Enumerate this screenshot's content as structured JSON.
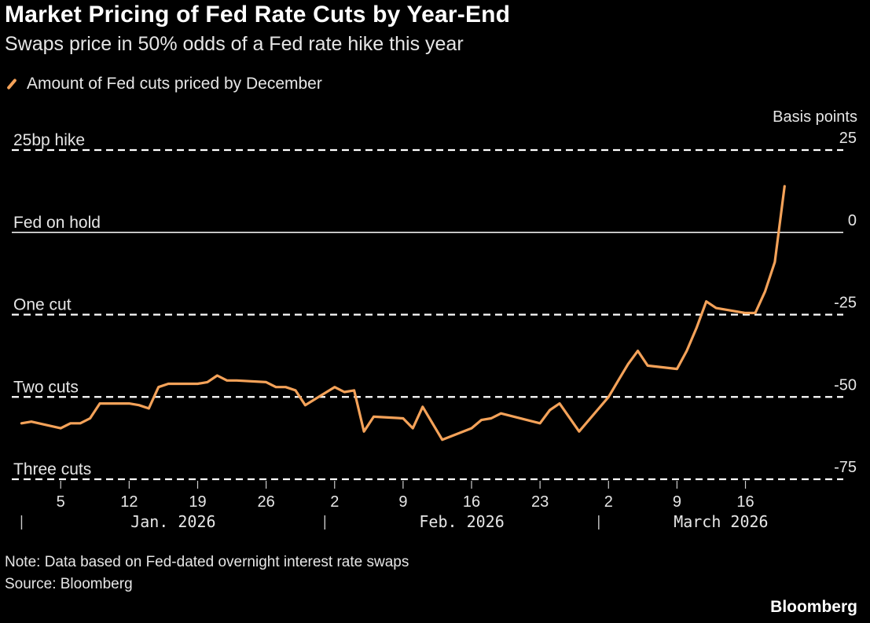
{
  "title": "Market Pricing of Fed Rate Cuts by Year-End",
  "subtitle": "Swaps price in 50% odds of a Fed rate hike this year",
  "legend_label": "Amount of Fed cuts priced by December",
  "note": "Note: Data based on Fed-dated overnight interest rate swaps",
  "source": "Source: Bloomberg",
  "brand": "Bloomberg",
  "colors": {
    "line": "#f4a259",
    "background": "#000000",
    "text": "#ffffff"
  },
  "chart_data": {
    "type": "line",
    "title": "Market Pricing of Fed Rate Cuts by Year-End",
    "subtitle": "Swaps price in 50% odds of a Fed rate hike this year",
    "ylabel": "Basis points",
    "ylim": [
      -75,
      25
    ],
    "yticks": [
      25,
      0,
      -25,
      -50,
      -75
    ],
    "xlim": [
      "2025-12-31",
      "2026-03-26"
    ],
    "x_ticks": [
      {
        "date": "2026-01-05",
        "label": "5"
      },
      {
        "date": "2026-01-12",
        "label": "12"
      },
      {
        "date": "2026-01-19",
        "label": "19"
      },
      {
        "date": "2026-01-26",
        "label": "26"
      },
      {
        "date": "2026-02-02",
        "label": "2"
      },
      {
        "date": "2026-02-09",
        "label": "9"
      },
      {
        "date": "2026-02-16",
        "label": "16"
      },
      {
        "date": "2026-02-23",
        "label": "23"
      },
      {
        "date": "2026-03-02",
        "label": "2"
      },
      {
        "date": "2026-03-09",
        "label": "9"
      },
      {
        "date": "2026-03-16",
        "label": "16"
      }
    ],
    "month_labels": [
      {
        "label": "Jan. 2026",
        "start": "2026-01-01",
        "end": "2026-02-01"
      },
      {
        "label": "Feb. 2026",
        "start": "2026-02-01",
        "end": "2026-03-01"
      },
      {
        "label": "March 2026",
        "start": "2026-03-01",
        "end": "2026-04-01"
      }
    ],
    "reference_lines": [
      {
        "value": 25,
        "label": "25bp hike",
        "style": "dashed"
      },
      {
        "value": 0,
        "label": "Fed on hold",
        "style": "solid"
      },
      {
        "value": -25,
        "label": "One cut",
        "style": "dashed"
      },
      {
        "value": -50,
        "label": "Two cuts",
        "style": "dashed"
      },
      {
        "value": -75,
        "label": "Three cuts",
        "style": "dashed"
      }
    ],
    "grid": false,
    "legend": "top-left",
    "series": [
      {
        "name": "Amount of Fed cuts priced by December",
        "x": [
          "2026-01-01",
          "2026-01-02",
          "2026-01-05",
          "2026-01-06",
          "2026-01-07",
          "2026-01-08",
          "2026-01-09",
          "2026-01-12",
          "2026-01-13",
          "2026-01-14",
          "2026-01-15",
          "2026-01-16",
          "2026-01-19",
          "2026-01-20",
          "2026-01-21",
          "2026-01-22",
          "2026-01-23",
          "2026-01-26",
          "2026-01-27",
          "2026-01-28",
          "2026-01-29",
          "2026-01-30",
          "2026-02-02",
          "2026-02-03",
          "2026-02-04",
          "2026-02-05",
          "2026-02-06",
          "2026-02-09",
          "2026-02-10",
          "2026-02-11",
          "2026-02-13",
          "2026-02-16",
          "2026-02-17",
          "2026-02-18",
          "2026-02-19",
          "2026-02-23",
          "2026-02-24",
          "2026-02-25",
          "2026-02-27",
          "2026-03-02",
          "2026-03-03",
          "2026-03-04",
          "2026-03-05",
          "2026-03-06",
          "2026-03-09",
          "2026-03-10",
          "2026-03-11",
          "2026-03-12",
          "2026-03-13",
          "2026-03-16",
          "2026-03-17",
          "2026-03-18",
          "2026-03-19",
          "2026-03-20"
        ],
        "values": [
          -58,
          -57.5,
          -59.5,
          -58,
          -58,
          -56.5,
          -52,
          -52,
          -52.5,
          -53.5,
          -47,
          -46,
          -46,
          -45.5,
          -43.5,
          -45,
          -45,
          -45.5,
          -47,
          -47,
          -48,
          -52.5,
          -47,
          -48.5,
          -48,
          -60.5,
          -56,
          -56.5,
          -59.5,
          -53,
          -63,
          -59.5,
          -57,
          -56.5,
          -55,
          -58,
          -54,
          -52,
          -60.5,
          -50,
          -45,
          -40,
          -36,
          -40.5,
          -41.5,
          -36,
          -29,
          -21,
          -23,
          -24.5,
          -24.5,
          -18,
          -9,
          14
        ]
      }
    ]
  }
}
